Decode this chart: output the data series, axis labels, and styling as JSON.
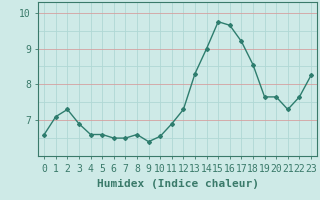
{
  "x": [
    0,
    1,
    2,
    3,
    4,
    5,
    6,
    7,
    8,
    9,
    10,
    11,
    12,
    13,
    14,
    15,
    16,
    17,
    18,
    19,
    20,
    21,
    22,
    23
  ],
  "y": [
    6.6,
    7.1,
    7.3,
    6.9,
    6.6,
    6.6,
    6.5,
    6.5,
    6.6,
    6.4,
    6.55,
    6.9,
    7.3,
    8.3,
    9.0,
    9.75,
    9.65,
    9.2,
    8.55,
    7.65,
    7.65,
    7.3,
    7.65,
    8.25
  ],
  "line_color": "#2e7d6e",
  "marker": "D",
  "marker_size": 2,
  "bg_color": "#ceeae7",
  "grid_color_main": "#b0d8d4",
  "grid_color_red": "#d4a0a0",
  "xlabel": "Humidex (Indice chaleur)",
  "xlabel_fontsize": 8,
  "ylim": [
    6.0,
    10.3
  ],
  "xlim": [
    -0.5,
    23.5
  ],
  "yticks": [
    7,
    8,
    9,
    10
  ],
  "tick_fontsize": 7,
  "line_width": 1.0,
  "spine_color": "#3a7a6a"
}
